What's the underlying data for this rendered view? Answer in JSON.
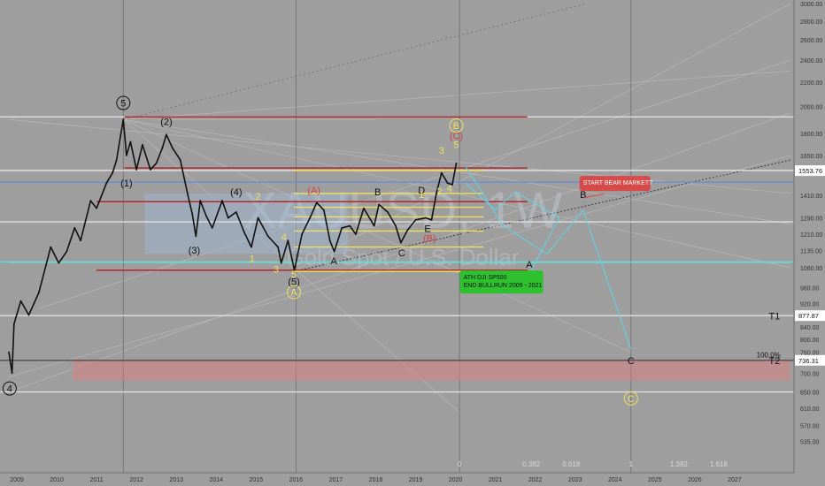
{
  "chart_data": {
    "type": "line",
    "watermark": {
      "symbol": "XAUUSD, 1W",
      "description": "Gold Spot / U.S. Dollar"
    },
    "x_axis": {
      "tick_labels": [
        "2009",
        "2010",
        "2011",
        "2012",
        "2013",
        "2014",
        "2015",
        "2016",
        "2017",
        "2018",
        "2019",
        "2020",
        "2021",
        "2022",
        "2023",
        "2024",
        "2025",
        "2026",
        "2027"
      ],
      "range": [
        2008.8,
        2028.4
      ]
    },
    "y_axis": {
      "scale": "log",
      "range": [
        500,
        3000
      ],
      "tick_labels": [
        3000,
        2800,
        2600,
        2400,
        2200,
        2000,
        1800,
        1650,
        1550,
        1410,
        1290,
        1210,
        1135,
        1060,
        980,
        920,
        840,
        800,
        760,
        700,
        650,
        610,
        570,
        535
      ],
      "current_price_badge": "1553.76",
      "level_badges": [
        "877.87",
        "736.31"
      ]
    },
    "series": [
      {
        "values": [
          {
            "x": 2008.8,
            "y": 760
          },
          {
            "x": 2008.88,
            "y": 700
          },
          {
            "x": 2008.93,
            "y": 850
          },
          {
            "x": 2009.1,
            "y": 930
          },
          {
            "x": 2009.3,
            "y": 880
          },
          {
            "x": 2009.55,
            "y": 960
          },
          {
            "x": 2009.85,
            "y": 1150
          },
          {
            "x": 2010.05,
            "y": 1080
          },
          {
            "x": 2010.25,
            "y": 1130
          },
          {
            "x": 2010.45,
            "y": 1240
          },
          {
            "x": 2010.6,
            "y": 1180
          },
          {
            "x": 2010.85,
            "y": 1380
          },
          {
            "x": 2011.0,
            "y": 1340
          },
          {
            "x": 2011.25,
            "y": 1480
          },
          {
            "x": 2011.4,
            "y": 1540
          },
          {
            "x": 2011.5,
            "y": 1620
          },
          {
            "x": 2011.6,
            "y": 1780
          },
          {
            "x": 2011.67,
            "y": 1900
          },
          {
            "x": 2011.75,
            "y": 1650
          },
          {
            "x": 2011.85,
            "y": 1740
          },
          {
            "x": 2012.0,
            "y": 1560
          },
          {
            "x": 2012.15,
            "y": 1720
          },
          {
            "x": 2012.35,
            "y": 1560
          },
          {
            "x": 2012.5,
            "y": 1600
          },
          {
            "x": 2012.65,
            "y": 1700
          },
          {
            "x": 2012.75,
            "y": 1790
          },
          {
            "x": 2012.9,
            "y": 1700
          },
          {
            "x": 2013.1,
            "y": 1620
          },
          {
            "x": 2013.28,
            "y": 1420
          },
          {
            "x": 2013.4,
            "y": 1310
          },
          {
            "x": 2013.49,
            "y": 1200
          },
          {
            "x": 2013.6,
            "y": 1380
          },
          {
            "x": 2013.75,
            "y": 1300
          },
          {
            "x": 2013.9,
            "y": 1240
          },
          {
            "x": 2014.15,
            "y": 1380
          },
          {
            "x": 2014.3,
            "y": 1290
          },
          {
            "x": 2014.5,
            "y": 1320
          },
          {
            "x": 2014.7,
            "y": 1220
          },
          {
            "x": 2014.88,
            "y": 1150
          },
          {
            "x": 2015.05,
            "y": 1290
          },
          {
            "x": 2015.3,
            "y": 1200
          },
          {
            "x": 2015.55,
            "y": 1150
          },
          {
            "x": 2015.63,
            "y": 1080
          },
          {
            "x": 2015.8,
            "y": 1180
          },
          {
            "x": 2015.96,
            "y": 1050
          },
          {
            "x": 2016.15,
            "y": 1210
          },
          {
            "x": 2016.35,
            "y": 1290
          },
          {
            "x": 2016.52,
            "y": 1370
          },
          {
            "x": 2016.7,
            "y": 1330
          },
          {
            "x": 2016.85,
            "y": 1180
          },
          {
            "x": 2016.96,
            "y": 1130
          },
          {
            "x": 2017.15,
            "y": 1240
          },
          {
            "x": 2017.35,
            "y": 1250
          },
          {
            "x": 2017.5,
            "y": 1210
          },
          {
            "x": 2017.7,
            "y": 1340
          },
          {
            "x": 2017.96,
            "y": 1250
          },
          {
            "x": 2018.08,
            "y": 1360
          },
          {
            "x": 2018.3,
            "y": 1320
          },
          {
            "x": 2018.5,
            "y": 1250
          },
          {
            "x": 2018.63,
            "y": 1170
          },
          {
            "x": 2018.8,
            "y": 1230
          },
          {
            "x": 2019.0,
            "y": 1280
          },
          {
            "x": 2019.25,
            "y": 1290
          },
          {
            "x": 2019.4,
            "y": 1280
          },
          {
            "x": 2019.52,
            "y": 1420
          },
          {
            "x": 2019.65,
            "y": 1540
          },
          {
            "x": 2019.8,
            "y": 1480
          },
          {
            "x": 2019.92,
            "y": 1470
          },
          {
            "x": 2020.02,
            "y": 1600
          }
        ]
      }
    ],
    "horizontal_levels": [
      {
        "y": 1920,
        "color": "#e0e0e0",
        "style": "solid"
      },
      {
        "y": 1555,
        "color": "#e0e0e0",
        "style": "solid"
      },
      {
        "y": 1270,
        "color": "#e0e0e0",
        "style": "solid"
      },
      {
        "y": 877.87,
        "color": "#e0e0e0",
        "style": "solid"
      },
      {
        "y": 736.31,
        "color": "#555555",
        "style": "solid"
      },
      {
        "y": 650,
        "color": "#e0e0e0",
        "style": "solid"
      },
      {
        "y": 1085,
        "color": "#46e6e6",
        "style": "solid"
      },
      {
        "y": 1485,
        "color": "#6a8fd0",
        "style": "solid"
      }
    ],
    "segments": [
      {
        "x1": 2011.7,
        "x2": 2021.8,
        "y": 1920,
        "color": "#b02828"
      },
      {
        "x1": 2011.7,
        "x2": 2021.8,
        "y": 1570,
        "color": "#b02828"
      },
      {
        "x1": 2011.0,
        "x2": 2021.8,
        "y": 1375,
        "color": "#b02828"
      },
      {
        "x1": 2011.0,
        "x2": 2021.8,
        "y": 1050,
        "color": "#b02828"
      },
      {
        "x1": 2015.95,
        "x2": 2020.7,
        "y": 1555,
        "color": "#f0e060"
      },
      {
        "x1": 2015.95,
        "x2": 2020.7,
        "y": 1420,
        "color": "#f0e060"
      },
      {
        "x1": 2015.95,
        "x2": 2020.7,
        "y": 1345,
        "color": "#f0e060"
      },
      {
        "x1": 2015.95,
        "x2": 2020.7,
        "y": 1295,
        "color": "#f0e060"
      },
      {
        "x1": 2015.95,
        "x2": 2020.7,
        "y": 1225,
        "color": "#f0e060"
      },
      {
        "x1": 2015.95,
        "x2": 2020.7,
        "y": 1150,
        "color": "#f0e060"
      },
      {
        "x1": 2015.95,
        "x2": 2020.7,
        "y": 1045,
        "color": "#f0e060"
      }
    ],
    "target_zone": {
      "x1": 2010.4,
      "x2": 2028.4,
      "y1": 740,
      "y2": 680,
      "color": "#d88080"
    },
    "fib_labels": [
      {
        "x": 2020.1,
        "text": "0"
      },
      {
        "x": 2021.9,
        "text": "0.382"
      },
      {
        "x": 2022.9,
        "text": "0.618"
      },
      {
        "x": 2024.4,
        "text": "1"
      },
      {
        "x": 2025.6,
        "text": "1.382"
      },
      {
        "x": 2026.6,
        "text": "1.618"
      }
    ],
    "fib_vertical_lines": [
      2011.67,
      2016.0,
      2020.1,
      2024.4
    ],
    "projection_path": [
      {
        "x": 2020.25,
        "y": 1580
      },
      {
        "x": 2021.2,
        "y": 1250
      },
      {
        "x": 2022.3,
        "y": 1120
      },
      {
        "x": 2023.2,
        "y": 1330
      },
      {
        "x": 2024.4,
        "y": 770
      }
    ],
    "projection_path_2": [
      {
        "x": 2020.25,
        "y": 1480
      },
      {
        "x": 2021.0,
        "y": 1330
      },
      {
        "x": 2021.5,
        "y": 1430
      },
      {
        "x": 2022.6,
        "y": 1290
      },
      {
        "x": 2021.9,
        "y": 1050
      }
    ],
    "wave_labels": [
      {
        "text": "5",
        "x": 2011.67,
        "y": 2000,
        "color": "#111111",
        "circled": true
      },
      {
        "text": "(2)",
        "x": 2012.75,
        "y": 1860,
        "color": "#111111"
      },
      {
        "text": "(1)",
        "x": 2011.75,
        "y": 1460,
        "color": "#111111"
      },
      {
        "text": "(4)",
        "x": 2014.5,
        "y": 1410,
        "color": "#111111"
      },
      {
        "text": "(3)",
        "x": 2013.45,
        "y": 1120,
        "color": "#111111"
      },
      {
        "text": "(5)",
        "x": 2015.95,
        "y": 990,
        "color": "#111111"
      },
      {
        "text": "A",
        "x": 2015.95,
        "y": 950,
        "color": "#f0e060",
        "circled": true
      },
      {
        "text": "4",
        "x": 2008.82,
        "y": 650,
        "color": "#111111",
        "circled": true
      },
      {
        "text": "2",
        "x": 2015.05,
        "y": 1385,
        "color": "#f0e060"
      },
      {
        "text": "4",
        "x": 2015.7,
        "y": 1180,
        "color": "#f0e060"
      },
      {
        "text": "1",
        "x": 2014.9,
        "y": 1085,
        "color": "#f0e060"
      },
      {
        "text": "3",
        "x": 2015.5,
        "y": 1040,
        "color": "#f0e060"
      },
      {
        "text": "5",
        "x": 2015.95,
        "y": 1020,
        "color": "#f0e060"
      },
      {
        "text": "(A)",
        "x": 2016.45,
        "y": 1420,
        "color": "#d84040"
      },
      {
        "text": "B",
        "x": 2018.05,
        "y": 1410,
        "color": "#111111"
      },
      {
        "text": "A",
        "x": 2016.95,
        "y": 1075,
        "color": "#111111"
      },
      {
        "text": "C",
        "x": 2018.65,
        "y": 1110,
        "color": "#111111"
      },
      {
        "text": "D",
        "x": 2019.15,
        "y": 1420,
        "color": "#111111"
      },
      {
        "text": "E",
        "x": 2019.3,
        "y": 1220,
        "color": "#111111"
      },
      {
        "text": "(B)",
        "x": 2019.35,
        "y": 1175,
        "color": "#d84040"
      },
      {
        "text": "1",
        "x": 2019.15,
        "y": 1395,
        "color": "#f0e060"
      },
      {
        "text": "2",
        "x": 2019.6,
        "y": 1415,
        "color": "#f0e060"
      },
      {
        "text": "3",
        "x": 2019.65,
        "y": 1660,
        "color": "#f0e060"
      },
      {
        "text": "4",
        "x": 2019.85,
        "y": 1430,
        "color": "#f0e060"
      },
      {
        "text": "5",
        "x": 2020.02,
        "y": 1700,
        "color": "#f0e060"
      },
      {
        "text": "(C)",
        "x": 2020.02,
        "y": 1760,
        "color": "#d84040"
      },
      {
        "text": "B",
        "x": 2020.02,
        "y": 1830,
        "color": "#f0e060",
        "circled": true
      },
      {
        "text": "A",
        "x": 2021.85,
        "y": 1060,
        "color": "#111111"
      },
      {
        "text": "B",
        "x": 2023.2,
        "y": 1395,
        "color": "#111111"
      },
      {
        "text": "C",
        "x": 2024.4,
        "y": 725,
        "color": "#111111"
      },
      {
        "text": "C",
        "x": 2024.4,
        "y": 625,
        "color": "#f0e060",
        "circled": true
      },
      {
        "text": "T1",
        "x": 2028.0,
        "y": 865,
        "color": "#111111"
      },
      {
        "text": "T2",
        "x": 2028.0,
        "y": 725,
        "color": "#111111"
      },
      {
        "text": "100.0%",
        "x": 2027.85,
        "y": 745,
        "color": "#111111"
      }
    ],
    "annotations": [
      {
        "lines": [
          "ATH DJI SP500",
          "END BULLRUN 2009 - 2021"
        ],
        "x": 2020.2,
        "y": 1020,
        "bg": "#2ec02e",
        "fg": "#111111"
      },
      {
        "lines": [
          "START BEAR MARKET?"
        ],
        "x": 2023.2,
        "y": 1480,
        "bg": "#d84a4a",
        "fg": "#ffffff"
      }
    ]
  }
}
